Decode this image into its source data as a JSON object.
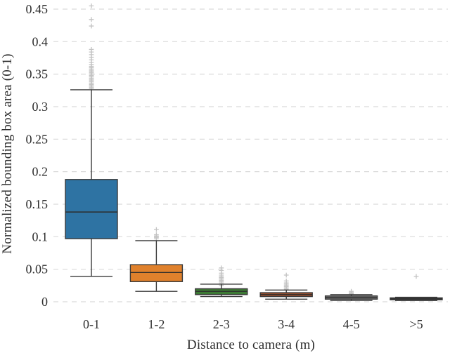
{
  "figure": {
    "background": "#ffffff",
    "text_color": "#2e2e2e",
    "gridline_color": "#d9d9d9",
    "box_edge_color": "#3a3a3a",
    "median_color": "#2d2d2d",
    "outlier_color": "#c3c3c3"
  },
  "chart_data": {
    "type": "boxplot",
    "title": "",
    "xlabel": "Distance to camera (m)",
    "ylabel": "Normalized bounding box area (0-1)",
    "categories": [
      "0-1",
      "1-2",
      "2-3",
      "3-4",
      "4-5",
      ">5"
    ],
    "ylim": [
      0,
      0.46
    ],
    "ytick_labels": [
      "0",
      "0.05",
      "0.1",
      "0.15",
      "0.2",
      "0.25",
      "0.3",
      "0.35",
      "0.4",
      "0.45"
    ],
    "grid": "horizontal-dashed",
    "legend": "none",
    "series": [
      {
        "category": "0-1",
        "fill": "#2e73a3",
        "whisker_low": 0.039,
        "q1": 0.097,
        "median": 0.138,
        "q3": 0.188,
        "whisker_high": 0.326,
        "outliers": [
          0.328,
          0.33,
          0.332,
          0.334,
          0.336,
          0.338,
          0.34,
          0.342,
          0.344,
          0.346,
          0.348,
          0.35,
          0.352,
          0.354,
          0.356,
          0.358,
          0.36,
          0.362,
          0.365,
          0.368,
          0.372,
          0.376,
          0.38,
          0.384,
          0.388,
          0.424,
          0.434,
          0.455
        ]
      },
      {
        "category": "1-2",
        "fill": "#e0812c",
        "whisker_low": 0.016,
        "q1": 0.031,
        "median": 0.045,
        "q3": 0.057,
        "whisker_high": 0.094,
        "outliers": [
          0.097,
          0.099,
          0.101,
          0.103,
          0.111
        ]
      },
      {
        "category": "2-3",
        "fill": "#3c7a34",
        "whisker_low": 0.008,
        "q1": 0.011,
        "median": 0.016,
        "q3": 0.02,
        "whisker_high": 0.027,
        "outliers": [
          0.025,
          0.027,
          0.029,
          0.031,
          0.033,
          0.035,
          0.037,
          0.039,
          0.041,
          0.044,
          0.048,
          0.052
        ]
      },
      {
        "category": "3-4",
        "fill": "#9c4f2e",
        "whisker_low": 0.004,
        "q1": 0.008,
        "median": 0.011,
        "q3": 0.014,
        "whisker_high": 0.018,
        "outliers": [
          0.019,
          0.021,
          0.023,
          0.025,
          0.027,
          0.029,
          0.032,
          0.041
        ]
      },
      {
        "category": "4-5",
        "fill": "#6e6e6e",
        "whisker_low": 0.002,
        "q1": 0.004,
        "median": 0.0065,
        "q3": 0.009,
        "whisker_high": 0.011,
        "outliers": [
          0.012,
          0.013,
          0.014,
          0.016
        ]
      },
      {
        "category": ">5",
        "fill": "#686868",
        "whisker_low": 0.002,
        "q1": 0.003,
        "median": 0.0045,
        "q3": 0.006,
        "whisker_high": 0.007,
        "outliers": [
          0.039
        ]
      }
    ]
  }
}
